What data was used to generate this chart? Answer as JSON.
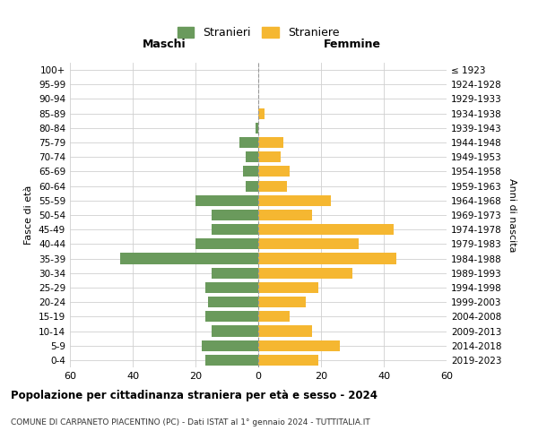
{
  "age_groups": [
    "0-4",
    "5-9",
    "10-14",
    "15-19",
    "20-24",
    "25-29",
    "30-34",
    "35-39",
    "40-44",
    "45-49",
    "50-54",
    "55-59",
    "60-64",
    "65-69",
    "70-74",
    "75-79",
    "80-84",
    "85-89",
    "90-94",
    "95-99",
    "100+"
  ],
  "birth_years": [
    "2019-2023",
    "2014-2018",
    "2009-2013",
    "2004-2008",
    "1999-2003",
    "1994-1998",
    "1989-1993",
    "1984-1988",
    "1979-1983",
    "1974-1978",
    "1969-1973",
    "1964-1968",
    "1959-1963",
    "1954-1958",
    "1949-1953",
    "1944-1948",
    "1939-1943",
    "1934-1938",
    "1929-1933",
    "1924-1928",
    "≤ 1923"
  ],
  "maschi": [
    17,
    18,
    15,
    17,
    16,
    17,
    15,
    44,
    20,
    15,
    15,
    20,
    4,
    5,
    4,
    6,
    1,
    0,
    0,
    0,
    0
  ],
  "femmine": [
    19,
    26,
    17,
    10,
    15,
    19,
    30,
    44,
    32,
    43,
    17,
    23,
    9,
    10,
    7,
    8,
    0,
    2,
    0,
    0,
    0
  ],
  "color_maschi": "#6a9a5c",
  "color_femmine": "#f5b731",
  "title": "Popolazione per cittadinanza straniera per età e sesso - 2024",
  "subtitle": "COMUNE DI CARPANETO PIACENTINO (PC) - Dati ISTAT al 1° gennaio 2024 - TUTTITALIA.IT",
  "xlabel_left": "Maschi",
  "xlabel_right": "Femmine",
  "ylabel_left": "Fasce di età",
  "ylabel_right": "Anni di nascita",
  "legend_maschi": "Stranieri",
  "legend_femmine": "Straniere",
  "xlim": 60,
  "background_color": "#ffffff",
  "grid_color": "#d0d0d0"
}
